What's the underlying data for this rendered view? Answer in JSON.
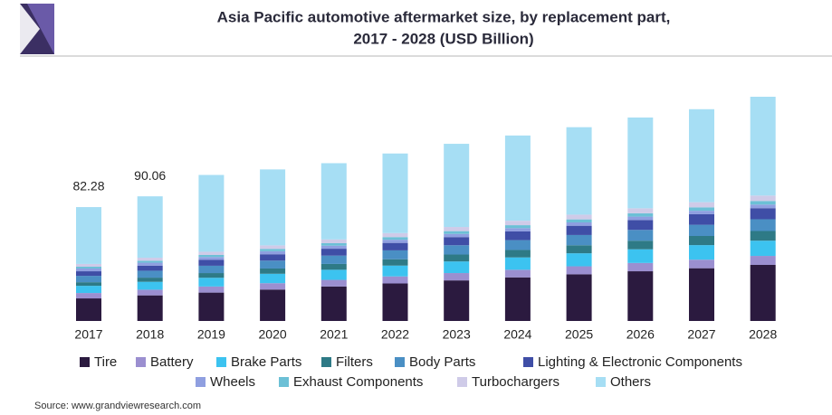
{
  "chart_data": {
    "type": "stacked_bar",
    "title": [
      "Asia Pacific automotive aftermarket size, by replacement part,",
      "2017 - 2028 (USD Billion)"
    ],
    "categories": [
      "2017",
      "2018",
      "2019",
      "2020",
      "2021",
      "2022",
      "2023",
      "2024",
      "2025",
      "2026",
      "2027",
      "2028"
    ],
    "series": [
      {
        "name": "Tire",
        "color": "#2b1a3f",
        "values": [
          16.3,
          18.5,
          20.5,
          22.7,
          24.9,
          27.1,
          29.3,
          31.5,
          33.7,
          35.9,
          38.1,
          40.5
        ]
      },
      {
        "name": "Battery",
        "color": "#9b8fd0",
        "values": [
          3.9,
          4.1,
          4.4,
          4.6,
          4.8,
          5.1,
          5.3,
          5.5,
          5.8,
          6.0,
          6.2,
          6.5
        ]
      },
      {
        "name": "Brake Parts",
        "color": "#3cc3f0",
        "values": [
          5.2,
          5.7,
          6.3,
          6.8,
          7.3,
          7.8,
          8.4,
          8.9,
          9.4,
          9.9,
          10.5,
          11.0
        ]
      },
      {
        "name": "Filters",
        "color": "#2e7a86",
        "values": [
          2.6,
          3.0,
          3.4,
          3.8,
          4.2,
          4.6,
          5.0,
          5.4,
          5.8,
          6.2,
          6.6,
          7.0
        ]
      },
      {
        "name": "Body Parts",
        "color": "#4a8fc4",
        "values": [
          4.6,
          5.0,
          5.3,
          5.7,
          6.0,
          6.4,
          6.7,
          7.1,
          7.4,
          7.8,
          8.1,
          8.5
        ]
      },
      {
        "name": "Lighting & Electronic Components",
        "color": "#3f4ea6",
        "values": [
          3.3,
          3.7,
          4.2,
          4.6,
          5.0,
          5.4,
          5.9,
          6.3,
          6.7,
          7.1,
          7.6,
          8.0
        ]
      },
      {
        "name": "Wheels",
        "color": "#8f9fe0",
        "values": [
          2.0,
          2.1,
          2.1,
          2.2,
          2.2,
          2.3,
          2.3,
          2.4,
          2.4,
          2.5,
          2.5,
          2.6
        ]
      },
      {
        "name": "Exhaust Components",
        "color": "#6cc0d6",
        "values": [
          1.3,
          1.4,
          1.5,
          1.7,
          1.8,
          1.9,
          2.0,
          2.1,
          2.2,
          2.4,
          2.5,
          2.6
        ]
      },
      {
        "name": "Turbochargers",
        "color": "#cfcbe8",
        "values": [
          2.0,
          2.2,
          2.3,
          2.5,
          2.7,
          2.9,
          3.0,
          3.2,
          3.4,
          3.6,
          3.7,
          3.9
        ]
      },
      {
        "name": "Others",
        "color": "#a6def4",
        "values": [
          41.08,
          44.36,
          55.5,
          54.9,
          55.1,
          57.5,
          60.1,
          61.6,
          63.2,
          65.6,
          67.2,
          71.4
        ]
      }
    ],
    "annotations": [
      {
        "category": "2017",
        "value": 82.28
      },
      {
        "category": "2018",
        "value": 90.06
      }
    ],
    "source": "Source: www.grandviewresearch.com"
  }
}
